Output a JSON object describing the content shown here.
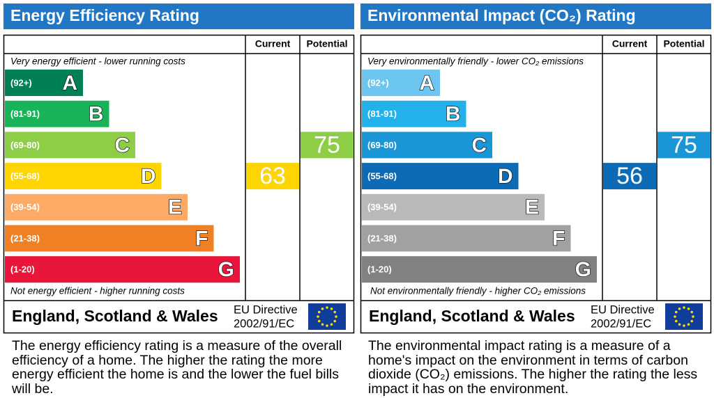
{
  "panels": [
    {
      "title": "Energy Efficiency Rating",
      "columns": [
        "Current",
        "Potential"
      ],
      "top_note": "Very energy efficient - lower running costs",
      "bottom_note": "Not energy efficient - higher running costs",
      "bands": [
        {
          "range": "(92+)",
          "letter": "A",
          "color": "#008054"
        },
        {
          "range": "(81-91)",
          "letter": "B",
          "color": "#19b459"
        },
        {
          "range": "(69-80)",
          "letter": "C",
          "color": "#8dce46"
        },
        {
          "range": "(55-68)",
          "letter": "D",
          "color": "#ffd500"
        },
        {
          "range": "(39-54)",
          "letter": "E",
          "color": "#fcaa65"
        },
        {
          "range": "(21-38)",
          "letter": "F",
          "color": "#ef8023"
        },
        {
          "range": "(1-20)",
          "letter": "G",
          "color": "#e9153b"
        }
      ],
      "current": 63,
      "potential": 75,
      "footer": "England, Scotland & Wales",
      "directive": [
        "EU Directive",
        "2002/91/EC"
      ],
      "description": "The energy efficiency rating is a measure of the overall efficiency of a home. The higher the rating the more energy efficient the home is and the lower the fuel bills will be."
    },
    {
      "title": "Environmental Impact (CO₂) Rating",
      "columns": [
        "Current",
        "Potential"
      ],
      "top_note": "Very environmentally friendly - lower CO₂ emissions",
      "bottom_note": "Not environmentally friendly - higher CO₂ emissions",
      "bands": [
        {
          "range": "(92+)",
          "letter": "A",
          "color": "#6dc6f0"
        },
        {
          "range": "(81-91)",
          "letter": "B",
          "color": "#22b1ea"
        },
        {
          "range": "(69-80)",
          "letter": "C",
          "color": "#1a95d6"
        },
        {
          "range": "(55-68)",
          "letter": "D",
          "color": "#0d6ab5"
        },
        {
          "range": "(39-54)",
          "letter": "E",
          "color": "#b9b9b9"
        },
        {
          "range": "(21-38)",
          "letter": "F",
          "color": "#a1a1a1"
        },
        {
          "range": "(1-20)",
          "letter": "G",
          "color": "#818181"
        }
      ],
      "current": 56,
      "potential": 75,
      "footer": "England, Scotland & Wales",
      "directive": [
        "EU Directive",
        "2002/91/EC"
      ],
      "description": "The environmental impact rating is a measure of a home's impact on the environment in terms of carbon dioxide (CO₂) emissions. The higher the rating the less impact it has on the environment."
    }
  ]
}
